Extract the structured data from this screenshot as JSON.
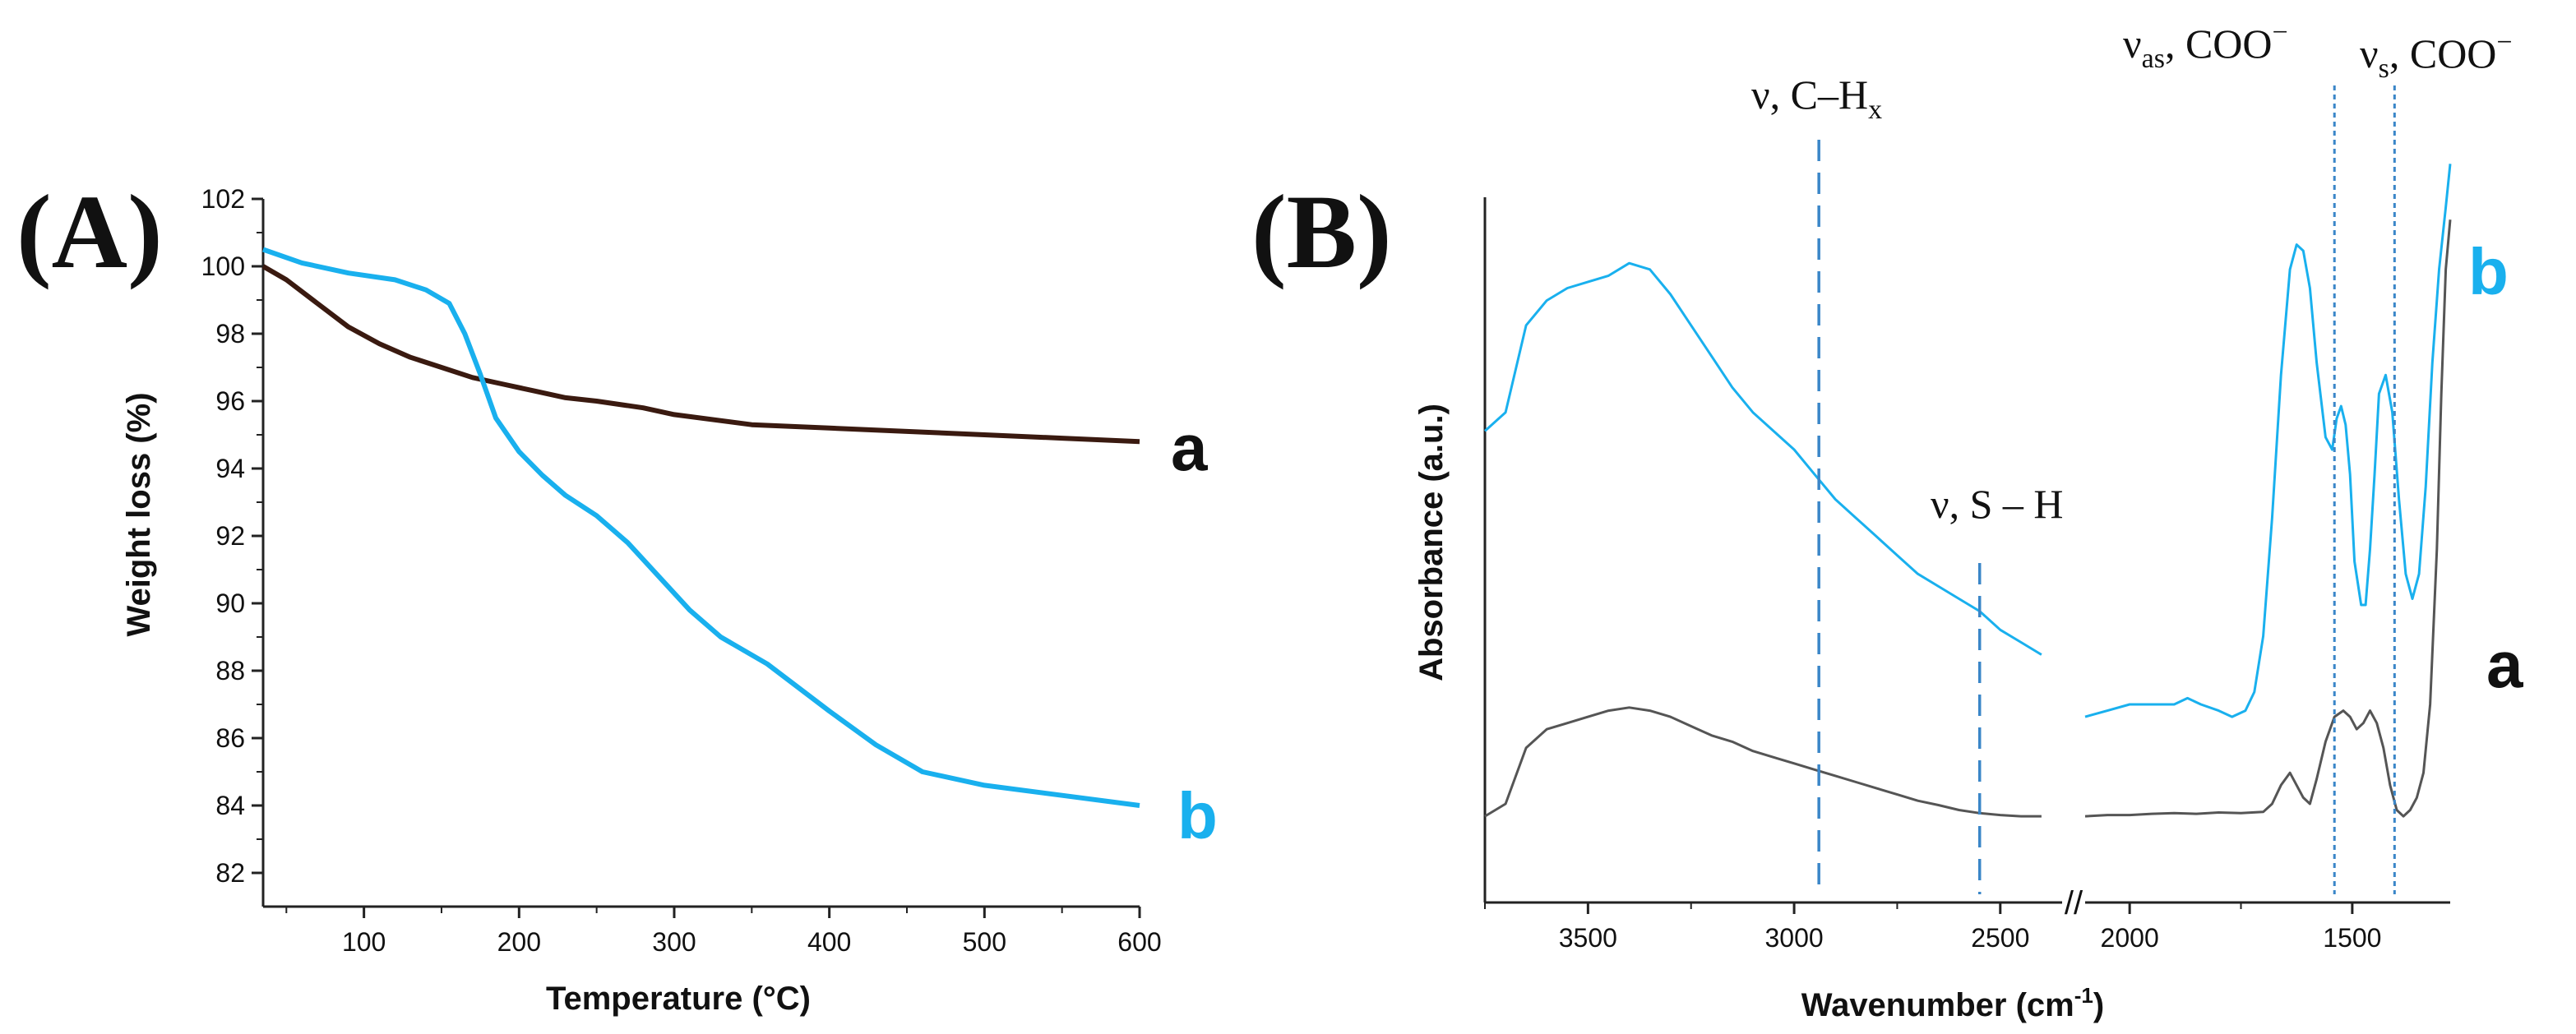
{
  "colors": {
    "series_a_A": "#3a1a10",
    "series_b": "#19b0ee",
    "series_a_B": "#555555",
    "axis": "#222222",
    "dashed_line": "#3a86c8"
  },
  "chart_data": [
    {
      "panel_label": "(A)",
      "type": "line",
      "xlabel": "Temperature (°C)",
      "ylabel": "Weight loss (%)",
      "xlim": [
        35,
        600
      ],
      "ylim": [
        81,
        102
      ],
      "x_ticks": [
        "100",
        "200",
        "300",
        "400",
        "500",
        "600"
      ],
      "y_ticks": [
        "82",
        "84",
        "86",
        "88",
        "90",
        "92",
        "94",
        "96",
        "98",
        "100",
        "102"
      ],
      "series": [
        {
          "name": "a",
          "x": [
            35,
            50,
            70,
            90,
            110,
            130,
            150,
            170,
            190,
            210,
            230,
            250,
            280,
            300,
            350,
            400,
            450,
            500,
            550,
            600
          ],
          "values": [
            100.0,
            99.6,
            98.9,
            98.2,
            97.7,
            97.3,
            97.0,
            96.7,
            96.5,
            96.3,
            96.1,
            96.0,
            95.8,
            95.6,
            95.3,
            95.2,
            95.1,
            95.0,
            94.9,
            94.8
          ]
        },
        {
          "name": "b",
          "x": [
            35,
            60,
            90,
            120,
            140,
            155,
            165,
            175,
            185,
            200,
            215,
            230,
            250,
            270,
            290,
            310,
            330,
            360,
            400,
            430,
            460,
            500,
            550,
            600
          ],
          "values": [
            100.5,
            100.1,
            99.8,
            99.6,
            99.3,
            98.9,
            98.0,
            96.8,
            95.5,
            94.5,
            93.8,
            93.2,
            92.6,
            91.8,
            90.8,
            89.8,
            89.0,
            88.2,
            86.8,
            85.8,
            85.0,
            84.6,
            84.3,
            84.0
          ]
        }
      ]
    },
    {
      "panel_label": "(B)",
      "type": "line",
      "xlabel": "Wavenumber (cm-1)",
      "ylabel": "Absorbance (a.u.)",
      "x_ticks": [
        "3500",
        "3000",
        "2500",
        "2000",
        "1500"
      ],
      "axis_break": "//",
      "annotations": [
        "ν, C–Hx",
        "ν, S – H",
        "νas, COO⁻",
        "νs, COO⁻"
      ],
      "series_labels": [
        "b",
        "a"
      ],
      "series": [
        {
          "name": "b",
          "segments": [
            {
              "x": [
                3750,
                3700,
                3650,
                3600,
                3550,
                3500,
                3450,
                3400,
                3350,
                3300,
                3250,
                3200,
                3150,
                3100,
                3050,
                3000,
                2950,
                2900,
                2850,
                2800,
                2750,
                2700,
                2650,
                2600,
                2550,
                2500,
                2450,
                2400
              ],
              "values": [
                0.69,
                0.72,
                0.86,
                0.9,
                0.92,
                0.93,
                0.94,
                0.96,
                0.95,
                0.91,
                0.86,
                0.81,
                0.76,
                0.72,
                0.69,
                0.66,
                0.62,
                0.58,
                0.55,
                0.52,
                0.49,
                0.46,
                0.44,
                0.42,
                0.4,
                0.37,
                0.35,
                0.33
              ]
            },
            {
              "x": [
                2100,
                2050,
                2000,
                1950,
                1900,
                1870,
                1840,
                1800,
                1770,
                1740,
                1720,
                1700,
                1680,
                1660,
                1640,
                1625,
                1610,
                1595,
                1580,
                1560,
                1545,
                1535,
                1525,
                1515,
                1505,
                1495,
                1480,
                1470,
                1460,
                1450,
                1440,
                1425,
                1410,
                1395,
                1380,
                1365,
                1350,
                1335,
                1320,
                1305,
                1290,
                1280
              ],
              "values": [
                0.23,
                0.24,
                0.25,
                0.25,
                0.25,
                0.26,
                0.25,
                0.24,
                0.23,
                0.24,
                0.27,
                0.36,
                0.55,
                0.78,
                0.95,
                0.99,
                0.98,
                0.92,
                0.8,
                0.68,
                0.66,
                0.71,
                0.73,
                0.7,
                0.62,
                0.48,
                0.41,
                0.41,
                0.5,
                0.62,
                0.75,
                0.78,
                0.72,
                0.58,
                0.46,
                0.42,
                0.46,
                0.6,
                0.8,
                0.95,
                1.05,
                1.12
              ]
            }
          ]
        },
        {
          "name": "a",
          "segments": [
            {
              "x": [
                3750,
                3700,
                3650,
                3600,
                3550,
                3500,
                3450,
                3400,
                3350,
                3300,
                3250,
                3200,
                3150,
                3100,
                3050,
                3000,
                2950,
                2900,
                2850,
                2800,
                2750,
                2700,
                2650,
                2600,
                2550,
                2500,
                2450,
                2400
              ],
              "values": [
                0.07,
                0.09,
                0.18,
                0.21,
                0.22,
                0.23,
                0.24,
                0.245,
                0.24,
                0.23,
                0.215,
                0.2,
                0.19,
                0.175,
                0.165,
                0.155,
                0.145,
                0.135,
                0.125,
                0.115,
                0.105,
                0.095,
                0.088,
                0.08,
                0.075,
                0.072,
                0.07,
                0.07
              ]
            },
            {
              "x": [
                2100,
                2050,
                2000,
                1950,
                1900,
                1850,
                1800,
                1750,
                1700,
                1680,
                1660,
                1640,
                1625,
                1610,
                1595,
                1580,
                1560,
                1540,
                1520,
                1505,
                1490,
                1475,
                1460,
                1445,
                1430,
                1415,
                1400,
                1385,
                1370,
                1355,
                1340,
                1325,
                1310,
                1300,
                1290,
                1280
              ],
              "values": [
                0.07,
                0.072,
                0.072,
                0.074,
                0.075,
                0.074,
                0.076,
                0.075,
                0.077,
                0.09,
                0.12,
                0.14,
                0.12,
                0.1,
                0.09,
                0.13,
                0.19,
                0.23,
                0.24,
                0.23,
                0.21,
                0.22,
                0.24,
                0.22,
                0.18,
                0.12,
                0.08,
                0.07,
                0.08,
                0.1,
                0.14,
                0.25,
                0.5,
                0.75,
                0.95,
                1.03
              ]
            }
          ]
        }
      ]
    }
  ]
}
